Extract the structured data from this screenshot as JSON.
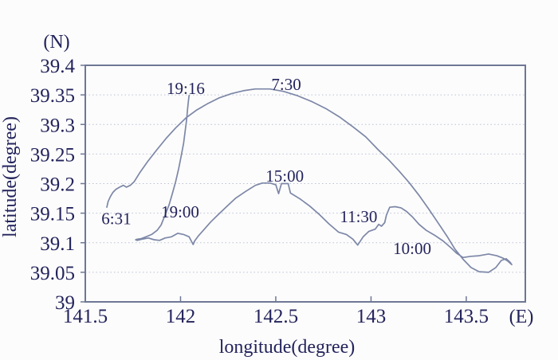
{
  "chart_data": {
    "type": "line",
    "title": "",
    "xlabel": "longitude(degree)",
    "ylabel": "latitude(degree)",
    "x_unit_label": "(E)",
    "y_unit_label": "(N)",
    "xlim": [
      141.5,
      143.81
    ],
    "ylim": [
      39.0,
      39.4
    ],
    "xticks": [
      141.5,
      142,
      142.5,
      143,
      143.5
    ],
    "xtick_labels": [
      "141.5",
      "142",
      "142.5",
      "143",
      "143.5"
    ],
    "yticks": [
      39.4,
      39.35,
      39.3,
      39.25,
      39.2,
      39.15,
      39.1,
      39.05,
      39
    ],
    "ytick_labels": [
      "39.4",
      "39.35",
      "39.3",
      "39.25",
      "39.2",
      "39.15",
      "39.1",
      "39.05",
      "39"
    ],
    "grid": "horizontal-dotted",
    "legend": "none",
    "colors": {
      "line": "#7d87a7",
      "text": "#23235c",
      "frame": "#6e7894",
      "grid": "#bcc2d6",
      "background": "#fcfcfc"
    },
    "series": [
      {
        "name": "trajectory",
        "points": [
          [
            141.613,
            39.16
          ],
          [
            141.62,
            39.17
          ],
          [
            141.632,
            39.178
          ],
          [
            141.645,
            39.185
          ],
          [
            141.66,
            39.19
          ],
          [
            141.68,
            39.194
          ],
          [
            141.7,
            39.197
          ],
          [
            141.716,
            39.194
          ],
          [
            141.736,
            39.197
          ],
          [
            141.756,
            39.203
          ],
          [
            141.789,
            39.22
          ],
          [
            141.827,
            39.237
          ],
          [
            141.873,
            39.256
          ],
          [
            141.923,
            39.276
          ],
          [
            141.974,
            39.294
          ],
          [
            142.028,
            39.311
          ],
          [
            142.083,
            39.324
          ],
          [
            142.141,
            39.335
          ],
          [
            142.204,
            39.345
          ],
          [
            142.267,
            39.352
          ],
          [
            142.33,
            39.357
          ],
          [
            142.393,
            39.36
          ],
          [
            142.468,
            39.36
          ],
          [
            142.54,
            39.356
          ],
          [
            142.611,
            39.349
          ],
          [
            142.687,
            39.339
          ],
          [
            142.762,
            39.327
          ],
          [
            142.833,
            39.313
          ],
          [
            142.905,
            39.296
          ],
          [
            142.972,
            39.279
          ],
          [
            143.035,
            39.258
          ],
          [
            143.093,
            39.24
          ],
          [
            143.148,
            39.221
          ],
          [
            143.202,
            39.201
          ],
          [
            143.252,
            39.18
          ],
          [
            143.303,
            39.157
          ],
          [
            143.353,
            39.133
          ],
          [
            143.399,
            39.111
          ],
          [
            143.441,
            39.089
          ],
          [
            143.483,
            39.072
          ],
          [
            143.525,
            39.058
          ],
          [
            143.567,
            39.051
          ],
          [
            143.617,
            39.05
          ],
          [
            143.655,
            39.058
          ],
          [
            143.684,
            39.07
          ],
          [
            143.709,
            39.073
          ],
          [
            143.73,
            39.067
          ],
          [
            143.739,
            39.063
          ],
          [
            143.718,
            39.069
          ],
          [
            143.693,
            39.074
          ],
          [
            143.66,
            39.078
          ],
          [
            143.617,
            39.081
          ],
          [
            143.567,
            39.078
          ],
          [
            143.525,
            39.077
          ],
          [
            143.483,
            39.075
          ],
          [
            143.45,
            39.082
          ],
          [
            143.421,
            39.091
          ],
          [
            143.378,
            39.103
          ],
          [
            143.332,
            39.113
          ],
          [
            143.29,
            39.121
          ],
          [
            143.252,
            39.131
          ],
          [
            143.219,
            39.143
          ],
          [
            143.186,
            39.153
          ],
          [
            143.157,
            39.159
          ],
          [
            143.127,
            39.161
          ],
          [
            143.098,
            39.16
          ],
          [
            143.081,
            39.147
          ],
          [
            143.072,
            39.134
          ],
          [
            143.055,
            39.128
          ],
          [
            143.04,
            39.131
          ],
          [
            143.022,
            39.123
          ],
          [
            142.988,
            39.119
          ],
          [
            142.959,
            39.11
          ],
          [
            142.93,
            39.096
          ],
          [
            142.905,
            39.106
          ],
          [
            142.871,
            39.114
          ],
          [
            142.829,
            39.118
          ],
          [
            142.779,
            39.132
          ],
          [
            142.728,
            39.148
          ],
          [
            142.678,
            39.162
          ],
          [
            142.628,
            39.174
          ],
          [
            142.577,
            39.184
          ],
          [
            142.565,
            39.2
          ],
          [
            142.53,
            39.2
          ],
          [
            142.515,
            39.183
          ],
          [
            142.5,
            39.198
          ],
          [
            142.47,
            39.201
          ],
          [
            142.43,
            39.201
          ],
          [
            142.393,
            39.197
          ],
          [
            142.343,
            39.187
          ],
          [
            142.288,
            39.175
          ],
          [
            142.238,
            39.16
          ],
          [
            142.196,
            39.147
          ],
          [
            142.158,
            39.135
          ],
          [
            142.125,
            39.123
          ],
          [
            142.095,
            39.112
          ],
          [
            142.074,
            39.103
          ],
          [
            142.066,
            39.097
          ],
          [
            142.045,
            39.11
          ],
          [
            142.016,
            39.114
          ],
          [
            141.986,
            39.116
          ],
          [
            141.953,
            39.11
          ],
          [
            141.919,
            39.108
          ],
          [
            141.89,
            39.104
          ],
          [
            141.861,
            39.105
          ],
          [
            141.831,
            39.108
          ],
          [
            141.798,
            39.106
          ],
          [
            141.773,
            39.104
          ],
          [
            141.764,
            39.105
          ],
          [
            141.773,
            39.106
          ],
          [
            141.794,
            39.107
          ],
          [
            141.819,
            39.11
          ],
          [
            141.848,
            39.114
          ],
          [
            141.877,
            39.121
          ],
          [
            141.898,
            39.13
          ],
          [
            141.919,
            39.147
          ],
          [
            141.94,
            39.164
          ],
          [
            141.957,
            39.183
          ],
          [
            141.974,
            39.203
          ],
          [
            141.99,
            39.225
          ],
          [
            142.003,
            39.246
          ],
          [
            142.016,
            39.268
          ],
          [
            142.024,
            39.288
          ],
          [
            142.032,
            39.308
          ],
          [
            142.037,
            39.326
          ],
          [
            142.041,
            39.339
          ],
          [
            142.045,
            39.349
          ]
        ]
      }
    ],
    "annotations": [
      {
        "label": "6:31",
        "lon": 141.663,
        "lat": 39.141
      },
      {
        "label": "19:16",
        "lon": 142.027,
        "lat": 39.361
      },
      {
        "label": "19:00",
        "lon": 141.998,
        "lat": 39.152
      },
      {
        "label": "7:30",
        "lon": 142.555,
        "lat": 39.368
      },
      {
        "label": "15:00",
        "lon": 142.547,
        "lat": 39.213
      },
      {
        "label": "11:30",
        "lon": 142.935,
        "lat": 39.144
      },
      {
        "label": "10:00",
        "lon": 143.216,
        "lat": 39.09
      }
    ]
  }
}
